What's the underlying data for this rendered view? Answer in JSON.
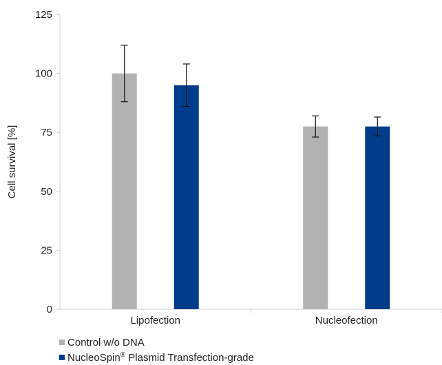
{
  "chart_data": {
    "type": "bar",
    "categories": [
      "Lipofection",
      "Nucleofection"
    ],
    "series": [
      {
        "name": "Control w/o DNA",
        "values": [
          100,
          77.5
        ],
        "error": [
          12,
          4.5
        ],
        "color": "#b2b2b2"
      },
      {
        "name": "NucleoSpin® Plasmid Transfection-grade",
        "values": [
          95,
          77.5
        ],
        "error": [
          9,
          4
        ],
        "color": "#003c8a"
      }
    ],
    "ylabel": "Cell survival [%]",
    "xlabel": "",
    "ylim": [
      0,
      125
    ],
    "yticks": [
      0,
      25,
      50,
      75,
      100,
      125
    ],
    "grid": false,
    "legend_position": "bottom-left"
  },
  "legend": {
    "items": [
      {
        "label": "Control w/o DNA",
        "color": "#b2b2b2"
      },
      {
        "label_main": "NucleoSpin",
        "label_sup": "®",
        "label_rest": " Plasmid Transfection-grade",
        "color": "#003c8a"
      }
    ]
  }
}
